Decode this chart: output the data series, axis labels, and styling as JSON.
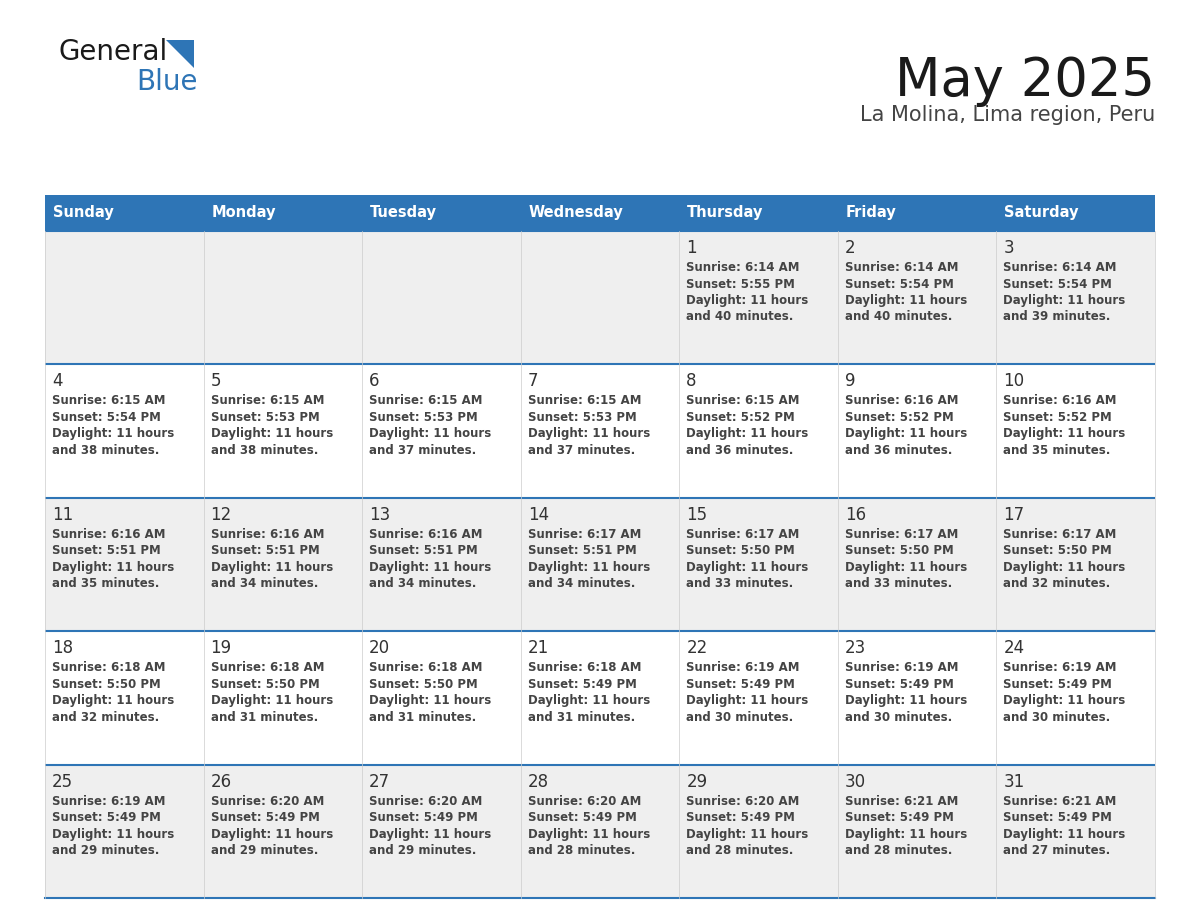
{
  "title": "May 2025",
  "subtitle": "La Molina, Lima region, Peru",
  "days_of_week": [
    "Sunday",
    "Monday",
    "Tuesday",
    "Wednesday",
    "Thursday",
    "Friday",
    "Saturday"
  ],
  "header_bg": "#2E75B6",
  "header_text": "#FFFFFF",
  "row_bg_even": "#EFEFEF",
  "row_bg_odd": "#FFFFFF",
  "cell_border_color": "#2E75B6",
  "day_num_color": "#333333",
  "info_color": "#444444",
  "calendar": [
    [
      null,
      null,
      null,
      null,
      {
        "day": "1",
        "sunrise": "6:14 AM",
        "sunset": "5:55 PM",
        "daylight_h": "11 hours",
        "daylight_m": "40 minutes"
      },
      {
        "day": "2",
        "sunrise": "6:14 AM",
        "sunset": "5:54 PM",
        "daylight_h": "11 hours",
        "daylight_m": "40 minutes"
      },
      {
        "day": "3",
        "sunrise": "6:14 AM",
        "sunset": "5:54 PM",
        "daylight_h": "11 hours",
        "daylight_m": "39 minutes"
      }
    ],
    [
      {
        "day": "4",
        "sunrise": "6:15 AM",
        "sunset": "5:54 PM",
        "daylight_h": "11 hours",
        "daylight_m": "38 minutes"
      },
      {
        "day": "5",
        "sunrise": "6:15 AM",
        "sunset": "5:53 PM",
        "daylight_h": "11 hours",
        "daylight_m": "38 minutes"
      },
      {
        "day": "6",
        "sunrise": "6:15 AM",
        "sunset": "5:53 PM",
        "daylight_h": "11 hours",
        "daylight_m": "37 minutes"
      },
      {
        "day": "7",
        "sunrise": "6:15 AM",
        "sunset": "5:53 PM",
        "daylight_h": "11 hours",
        "daylight_m": "37 minutes"
      },
      {
        "day": "8",
        "sunrise": "6:15 AM",
        "sunset": "5:52 PM",
        "daylight_h": "11 hours",
        "daylight_m": "36 minutes"
      },
      {
        "day": "9",
        "sunrise": "6:16 AM",
        "sunset": "5:52 PM",
        "daylight_h": "11 hours",
        "daylight_m": "36 minutes"
      },
      {
        "day": "10",
        "sunrise": "6:16 AM",
        "sunset": "5:52 PM",
        "daylight_h": "11 hours",
        "daylight_m": "35 minutes"
      }
    ],
    [
      {
        "day": "11",
        "sunrise": "6:16 AM",
        "sunset": "5:51 PM",
        "daylight_h": "11 hours",
        "daylight_m": "35 minutes"
      },
      {
        "day": "12",
        "sunrise": "6:16 AM",
        "sunset": "5:51 PM",
        "daylight_h": "11 hours",
        "daylight_m": "34 minutes"
      },
      {
        "day": "13",
        "sunrise": "6:16 AM",
        "sunset": "5:51 PM",
        "daylight_h": "11 hours",
        "daylight_m": "34 minutes"
      },
      {
        "day": "14",
        "sunrise": "6:17 AM",
        "sunset": "5:51 PM",
        "daylight_h": "11 hours",
        "daylight_m": "34 minutes"
      },
      {
        "day": "15",
        "sunrise": "6:17 AM",
        "sunset": "5:50 PM",
        "daylight_h": "11 hours",
        "daylight_m": "33 minutes"
      },
      {
        "day": "16",
        "sunrise": "6:17 AM",
        "sunset": "5:50 PM",
        "daylight_h": "11 hours",
        "daylight_m": "33 minutes"
      },
      {
        "day": "17",
        "sunrise": "6:17 AM",
        "sunset": "5:50 PM",
        "daylight_h": "11 hours",
        "daylight_m": "32 minutes"
      }
    ],
    [
      {
        "day": "18",
        "sunrise": "6:18 AM",
        "sunset": "5:50 PM",
        "daylight_h": "11 hours",
        "daylight_m": "32 minutes"
      },
      {
        "day": "19",
        "sunrise": "6:18 AM",
        "sunset": "5:50 PM",
        "daylight_h": "11 hours",
        "daylight_m": "31 minutes"
      },
      {
        "day": "20",
        "sunrise": "6:18 AM",
        "sunset": "5:50 PM",
        "daylight_h": "11 hours",
        "daylight_m": "31 minutes"
      },
      {
        "day": "21",
        "sunrise": "6:18 AM",
        "sunset": "5:49 PM",
        "daylight_h": "11 hours",
        "daylight_m": "31 minutes"
      },
      {
        "day": "22",
        "sunrise": "6:19 AM",
        "sunset": "5:49 PM",
        "daylight_h": "11 hours",
        "daylight_m": "30 minutes"
      },
      {
        "day": "23",
        "sunrise": "6:19 AM",
        "sunset": "5:49 PM",
        "daylight_h": "11 hours",
        "daylight_m": "30 minutes"
      },
      {
        "day": "24",
        "sunrise": "6:19 AM",
        "sunset": "5:49 PM",
        "daylight_h": "11 hours",
        "daylight_m": "30 minutes"
      }
    ],
    [
      {
        "day": "25",
        "sunrise": "6:19 AM",
        "sunset": "5:49 PM",
        "daylight_h": "11 hours",
        "daylight_m": "29 minutes"
      },
      {
        "day": "26",
        "sunrise": "6:20 AM",
        "sunset": "5:49 PM",
        "daylight_h": "11 hours",
        "daylight_m": "29 minutes"
      },
      {
        "day": "27",
        "sunrise": "6:20 AM",
        "sunset": "5:49 PM",
        "daylight_h": "11 hours",
        "daylight_m": "29 minutes"
      },
      {
        "day": "28",
        "sunrise": "6:20 AM",
        "sunset": "5:49 PM",
        "daylight_h": "11 hours",
        "daylight_m": "28 minutes"
      },
      {
        "day": "29",
        "sunrise": "6:20 AM",
        "sunset": "5:49 PM",
        "daylight_h": "11 hours",
        "daylight_m": "28 minutes"
      },
      {
        "day": "30",
        "sunrise": "6:21 AM",
        "sunset": "5:49 PM",
        "daylight_h": "11 hours",
        "daylight_m": "28 minutes"
      },
      {
        "day": "31",
        "sunrise": "6:21 AM",
        "sunset": "5:49 PM",
        "daylight_h": "11 hours",
        "daylight_m": "27 minutes"
      }
    ]
  ],
  "logo_color_general": "#1a1a1a",
  "logo_color_blue": "#2E75B6",
  "logo_triangle_color": "#2E75B6"
}
